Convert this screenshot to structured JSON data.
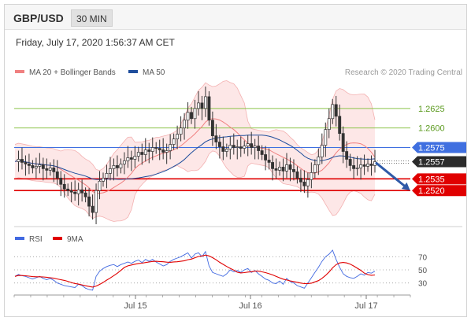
{
  "header": {
    "symbol": "GBP/USD",
    "timeframe": "30 MIN"
  },
  "timestamp": "Friday, July 17, 2020 1:56:37 AM CET",
  "colors": {
    "bollinger": "#f08080",
    "bollinger_fill": "#fde4e4",
    "ma50": "#1f4e9c",
    "up": "#3a3a3a",
    "down": "#3a3a3a",
    "target_line": "#8bc34a",
    "pivot": "#3f6fe0",
    "support": "#e00000",
    "arrow": "#2f5aa8",
    "rsi": "#4169e1",
    "rsi_ma": "#e00000"
  },
  "main_legend": [
    {
      "label": "MA 20 + Bollinger Bands",
      "color": "#f08080"
    },
    {
      "label": "MA 50",
      "color": "#1f4e9c"
    }
  ],
  "credit": "Research © 2020 Trading Central",
  "levels": [
    {
      "value": 1.2625,
      "label": "1.2625",
      "kind": "resistance",
      "color": "#8bc34a",
      "text_color": "#5b9a1e"
    },
    {
      "value": 1.26,
      "label": "1.2600",
      "kind": "resistance",
      "color": "#8bc34a",
      "text_color": "#5b9a1e"
    },
    {
      "value": 1.2575,
      "label": "1.2575",
      "kind": "pivot",
      "color": "#3f6fe0",
      "tag_bg": "#3f6fe0"
    },
    {
      "value": 1.2557,
      "label": "1.2557",
      "kind": "last",
      "color": "#555555",
      "tag_bg": "#2b2b2b"
    },
    {
      "value": 1.2535,
      "label": "1.2535",
      "kind": "support",
      "color": "#e00000",
      "tag_bg": "#e00000"
    },
    {
      "value": 1.252,
      "label": "1.2520",
      "kind": "support",
      "color": "#e00000",
      "tag_bg": "#e00000"
    }
  ],
  "rsi_legend": [
    {
      "label": "RSI",
      "color": "#4169e1"
    },
    {
      "label": "9MA",
      "color": "#e00000"
    }
  ],
  "rsi_ticks": [
    "70",
    "50",
    "30"
  ],
  "x_labels": [
    "Jul 15",
    "Jul 16",
    "Jul 17"
  ],
  "chart_data": {
    "type": "candlestick",
    "instrument": "GBP/USD",
    "interval": "30 MIN",
    "ylim": [
      1.248,
      1.2655
    ],
    "x": [
      "Jul 15",
      "Jul 16",
      "Jul 17"
    ],
    "close_path": [
      1.2557,
      1.256,
      1.2556,
      1.2554,
      1.2552,
      1.2549,
      1.2551,
      1.2553,
      1.2548,
      1.2546,
      1.2549,
      1.2544,
      1.2536,
      1.2528,
      1.2522,
      1.252,
      1.2518,
      1.2516,
      1.2521,
      1.2517,
      1.2512,
      1.25,
      1.2492,
      1.252,
      1.2532,
      1.2536,
      1.2542,
      1.2548,
      1.2552,
      1.2549,
      1.2554,
      1.2558,
      1.2562,
      1.256,
      1.2564,
      1.2569,
      1.2566,
      1.2572,
      1.257,
      1.2575,
      1.2574,
      1.2572,
      1.2569,
      1.2571,
      1.2579,
      1.2586,
      1.2592,
      1.26,
      1.261,
      1.262,
      1.2612,
      1.2625,
      1.2632,
      1.2625,
      1.264,
      1.261,
      1.259,
      1.2582,
      1.2576,
      1.257,
      1.2573,
      1.2578,
      1.2575,
      1.2576,
      1.2574,
      1.2577,
      1.258,
      1.2575,
      1.2577,
      1.2571,
      1.2566,
      1.2559,
      1.2556,
      1.2548,
      1.2546,
      1.255,
      1.2545,
      1.2553,
      1.2547,
      1.2544,
      1.2536,
      1.2531,
      1.2526,
      1.2534,
      1.2543,
      1.2553,
      1.2563,
      1.2578,
      1.2598,
      1.2612,
      1.263,
      1.2615,
      1.2593,
      1.257,
      1.256,
      1.2552,
      1.2548,
      1.2549,
      1.2553,
      1.2551,
      1.2554,
      1.2552,
      1.2557
    ],
    "series": [
      {
        "name": "MA 20 + Bollinger Bands"
      },
      {
        "name": "MA 50"
      },
      {
        "name": "RSI"
      },
      {
        "name": "9MA"
      }
    ],
    "levels": [
      1.2625,
      1.26,
      1.2575,
      1.2557,
      1.2535,
      1.252
    ],
    "forecast": "down toward 1.2520",
    "rsi_range": [
      0,
      100
    ],
    "rsi_levels": [
      70,
      50,
      30
    ],
    "rsi_path": [
      40,
      43,
      41,
      40,
      38,
      36,
      38,
      40,
      37,
      35,
      37,
      34,
      30,
      28,
      26,
      25,
      24,
      23,
      28,
      26,
      22,
      20,
      19,
      40,
      48,
      52,
      55,
      57,
      58,
      55,
      58,
      60,
      62,
      60,
      63,
      65,
      61,
      66,
      63,
      66,
      62,
      59,
      56,
      58,
      63,
      66,
      68,
      70,
      73,
      76,
      68,
      74,
      76,
      70,
      78,
      56,
      46,
      44,
      42,
      40,
      44,
      50,
      47,
      49,
      46,
      50,
      52,
      46,
      49,
      44,
      40,
      36,
      34,
      30,
      29,
      33,
      28,
      37,
      32,
      30,
      26,
      24,
      22,
      30,
      38,
      46,
      54,
      63,
      70,
      74,
      80,
      66,
      54,
      44,
      40,
      38,
      37,
      40,
      44,
      42,
      46,
      45,
      48
    ]
  }
}
